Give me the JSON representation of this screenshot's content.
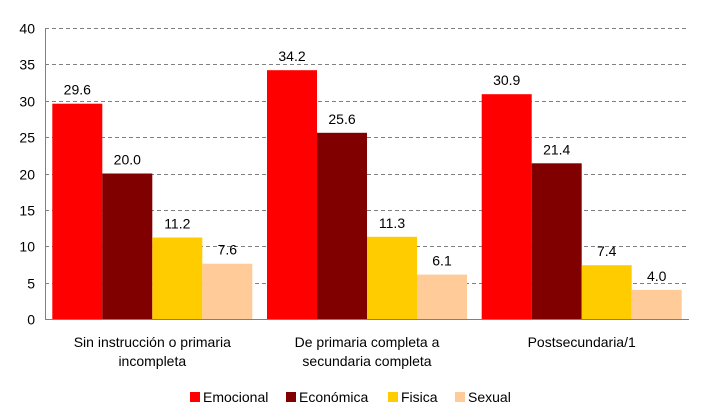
{
  "chart_data": {
    "type": "bar",
    "title": "",
    "xlabel": "",
    "ylabel": "",
    "ylim": [
      0,
      40
    ],
    "yticks": [
      "0",
      "5",
      "10",
      "15",
      "20",
      "25",
      "30",
      "35",
      "40"
    ],
    "grid": true,
    "legend_position": "bottom",
    "categories": [
      [
        "Sin instrucción o primaria",
        "incompleta"
      ],
      [
        "De primaria completa a",
        "secundaria completa"
      ],
      [
        "Postsecundaria/1"
      ]
    ],
    "series": [
      {
        "name": "Emocional",
        "color": "#ff0000",
        "values": [
          29.6,
          34.2,
          30.9
        ],
        "labels": [
          "29.6",
          "34.2",
          "30.9"
        ]
      },
      {
        "name": "Económica",
        "color": "#800000",
        "values": [
          20.0,
          25.6,
          21.4
        ],
        "labels": [
          "20.0",
          "25.6",
          "21.4"
        ]
      },
      {
        "name": "Fisica",
        "color": "#ffcc00",
        "values": [
          11.2,
          11.3,
          7.4
        ],
        "labels": [
          "11.2",
          "11.3",
          "7.4"
        ]
      },
      {
        "name": "Sexual",
        "color": "#ffcc99",
        "values": [
          7.6,
          6.1,
          4.0
        ],
        "labels": [
          "7.6",
          "6.1",
          "4.0"
        ]
      }
    ]
  }
}
